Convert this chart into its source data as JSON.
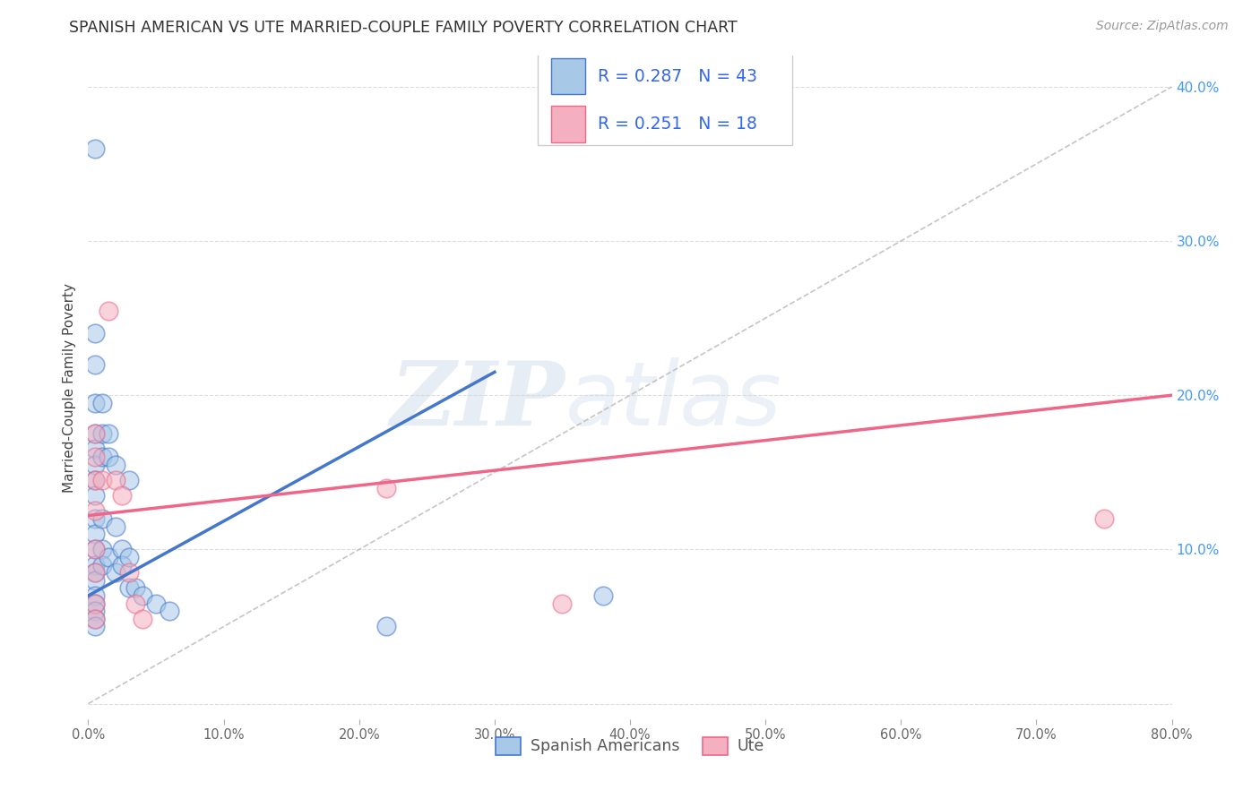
{
  "title": "SPANISH AMERICAN VS UTE MARRIED-COUPLE FAMILY POVERTY CORRELATION CHART",
  "source": "Source: ZipAtlas.com",
  "ylabel": "Married-Couple Family Poverty",
  "r1": 0.287,
  "n1": 43,
  "r2": 0.251,
  "n2": 18,
  "color_blue": "#A8C8E8",
  "color_pink": "#F4B0C0",
  "color_blue_line": "#4477CC",
  "color_pink_line": "#EE6688",
  "color_diag": "#BBBBBB",
  "xlim": [
    0.0,
    0.8
  ],
  "ylim": [
    -0.01,
    0.42
  ],
  "xticks": [
    0.0,
    0.1,
    0.2,
    0.3,
    0.4,
    0.5,
    0.6,
    0.7,
    0.8
  ],
  "yticks": [
    0.0,
    0.1,
    0.2,
    0.3,
    0.4
  ],
  "xtick_labels": [
    "0.0%",
    "10.0%",
    "20.0%",
    "30.0%",
    "40.0%",
    "50.0%",
    "60.0%",
    "70.0%",
    "80.0%"
  ],
  "ytick_labels_right": [
    "",
    "10.0%",
    "20.0%",
    "30.0%",
    "40.0%"
  ],
  "legend_label1": "Spanish Americans",
  "legend_label2": "Ute",
  "spanish_x": [
    0.005,
    0.005,
    0.005,
    0.005,
    0.005,
    0.005,
    0.005,
    0.005,
    0.005,
    0.005,
    0.005,
    0.005,
    0.005,
    0.005,
    0.005,
    0.005,
    0.005,
    0.005,
    0.005,
    0.005,
    0.01,
    0.01,
    0.01,
    0.01,
    0.01,
    0.01,
    0.015,
    0.015,
    0.015,
    0.02,
    0.02,
    0.02,
    0.025,
    0.025,
    0.03,
    0.03,
    0.03,
    0.035,
    0.04,
    0.05,
    0.06,
    0.22,
    0.38
  ],
  "spanish_y": [
    0.36,
    0.24,
    0.22,
    0.195,
    0.175,
    0.165,
    0.155,
    0.145,
    0.135,
    0.12,
    0.11,
    0.1,
    0.09,
    0.085,
    0.08,
    0.07,
    0.065,
    0.06,
    0.055,
    0.05,
    0.195,
    0.175,
    0.16,
    0.12,
    0.1,
    0.09,
    0.175,
    0.16,
    0.095,
    0.155,
    0.115,
    0.085,
    0.1,
    0.09,
    0.145,
    0.095,
    0.075,
    0.075,
    0.07,
    0.065,
    0.06,
    0.05,
    0.07
  ],
  "ute_x": [
    0.005,
    0.005,
    0.005,
    0.005,
    0.005,
    0.005,
    0.005,
    0.005,
    0.01,
    0.015,
    0.02,
    0.025,
    0.03,
    0.035,
    0.04,
    0.22,
    0.35,
    0.75
  ],
  "ute_y": [
    0.175,
    0.16,
    0.145,
    0.125,
    0.1,
    0.085,
    0.065,
    0.055,
    0.145,
    0.255,
    0.145,
    0.135,
    0.085,
    0.065,
    0.055,
    0.14,
    0.065,
    0.12
  ],
  "watermark_zip": "ZIP",
  "watermark_atlas": "atlas",
  "background_color": "#FFFFFF",
  "grid_color": "#DDDDDD",
  "blue_line_x": [
    0.0,
    0.3
  ],
  "blue_line_y": [
    0.07,
    0.215
  ],
  "pink_line_x": [
    0.0,
    0.8
  ],
  "pink_line_y": [
    0.122,
    0.2
  ]
}
